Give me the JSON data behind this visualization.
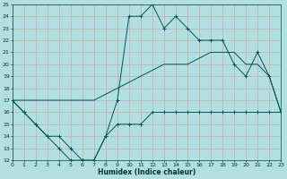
{
  "xlabel": "Humidex (Indice chaleur)",
  "xlim": [
    0,
    23
  ],
  "ylim": [
    12,
    25
  ],
  "yticks": [
    12,
    13,
    14,
    15,
    16,
    17,
    18,
    19,
    20,
    21,
    22,
    23,
    24,
    25
  ],
  "xticks": [
    0,
    1,
    2,
    3,
    4,
    5,
    6,
    7,
    8,
    9,
    10,
    11,
    12,
    13,
    14,
    15,
    16,
    17,
    18,
    19,
    20,
    21,
    22,
    23
  ],
  "bg_color": "#b2dfdf",
  "grid_color": "#c8a8a8",
  "line_color": "#005555",
  "line1_x": [
    0,
    1,
    2,
    3,
    4,
    5,
    6,
    7,
    8,
    9,
    10,
    11,
    12,
    13,
    14,
    15,
    16,
    17,
    18,
    19,
    20,
    21,
    22,
    23
  ],
  "line1_y": [
    17,
    16,
    15,
    14,
    13,
    12,
    12,
    12,
    14,
    17,
    24,
    24,
    25,
    23,
    24,
    23,
    22,
    22,
    22,
    20,
    19,
    21,
    19,
    16
  ],
  "line2_x": [
    0,
    1,
    2,
    3,
    4,
    5,
    6,
    7,
    8,
    9,
    10,
    11,
    12,
    13,
    14,
    15,
    16,
    17,
    18,
    19,
    20,
    21,
    22,
    23
  ],
  "line2_y": [
    17,
    17,
    17,
    17,
    17,
    17,
    17,
    17,
    17.5,
    18,
    18.5,
    19,
    19.5,
    20,
    20,
    20,
    20.5,
    21,
    21,
    21,
    20,
    20,
    19,
    16
  ],
  "line3_x": [
    0,
    1,
    2,
    3,
    4,
    5,
    6,
    7,
    8,
    9,
    10,
    11,
    12,
    13,
    14,
    15,
    16,
    17,
    18,
    19,
    20,
    21,
    22,
    23
  ],
  "line3_y": [
    17,
    16,
    15,
    14,
    14,
    13,
    12,
    12,
    14,
    15,
    15,
    15,
    16,
    16,
    16,
    16,
    16,
    16,
    16,
    16,
    16,
    16,
    16,
    16
  ]
}
